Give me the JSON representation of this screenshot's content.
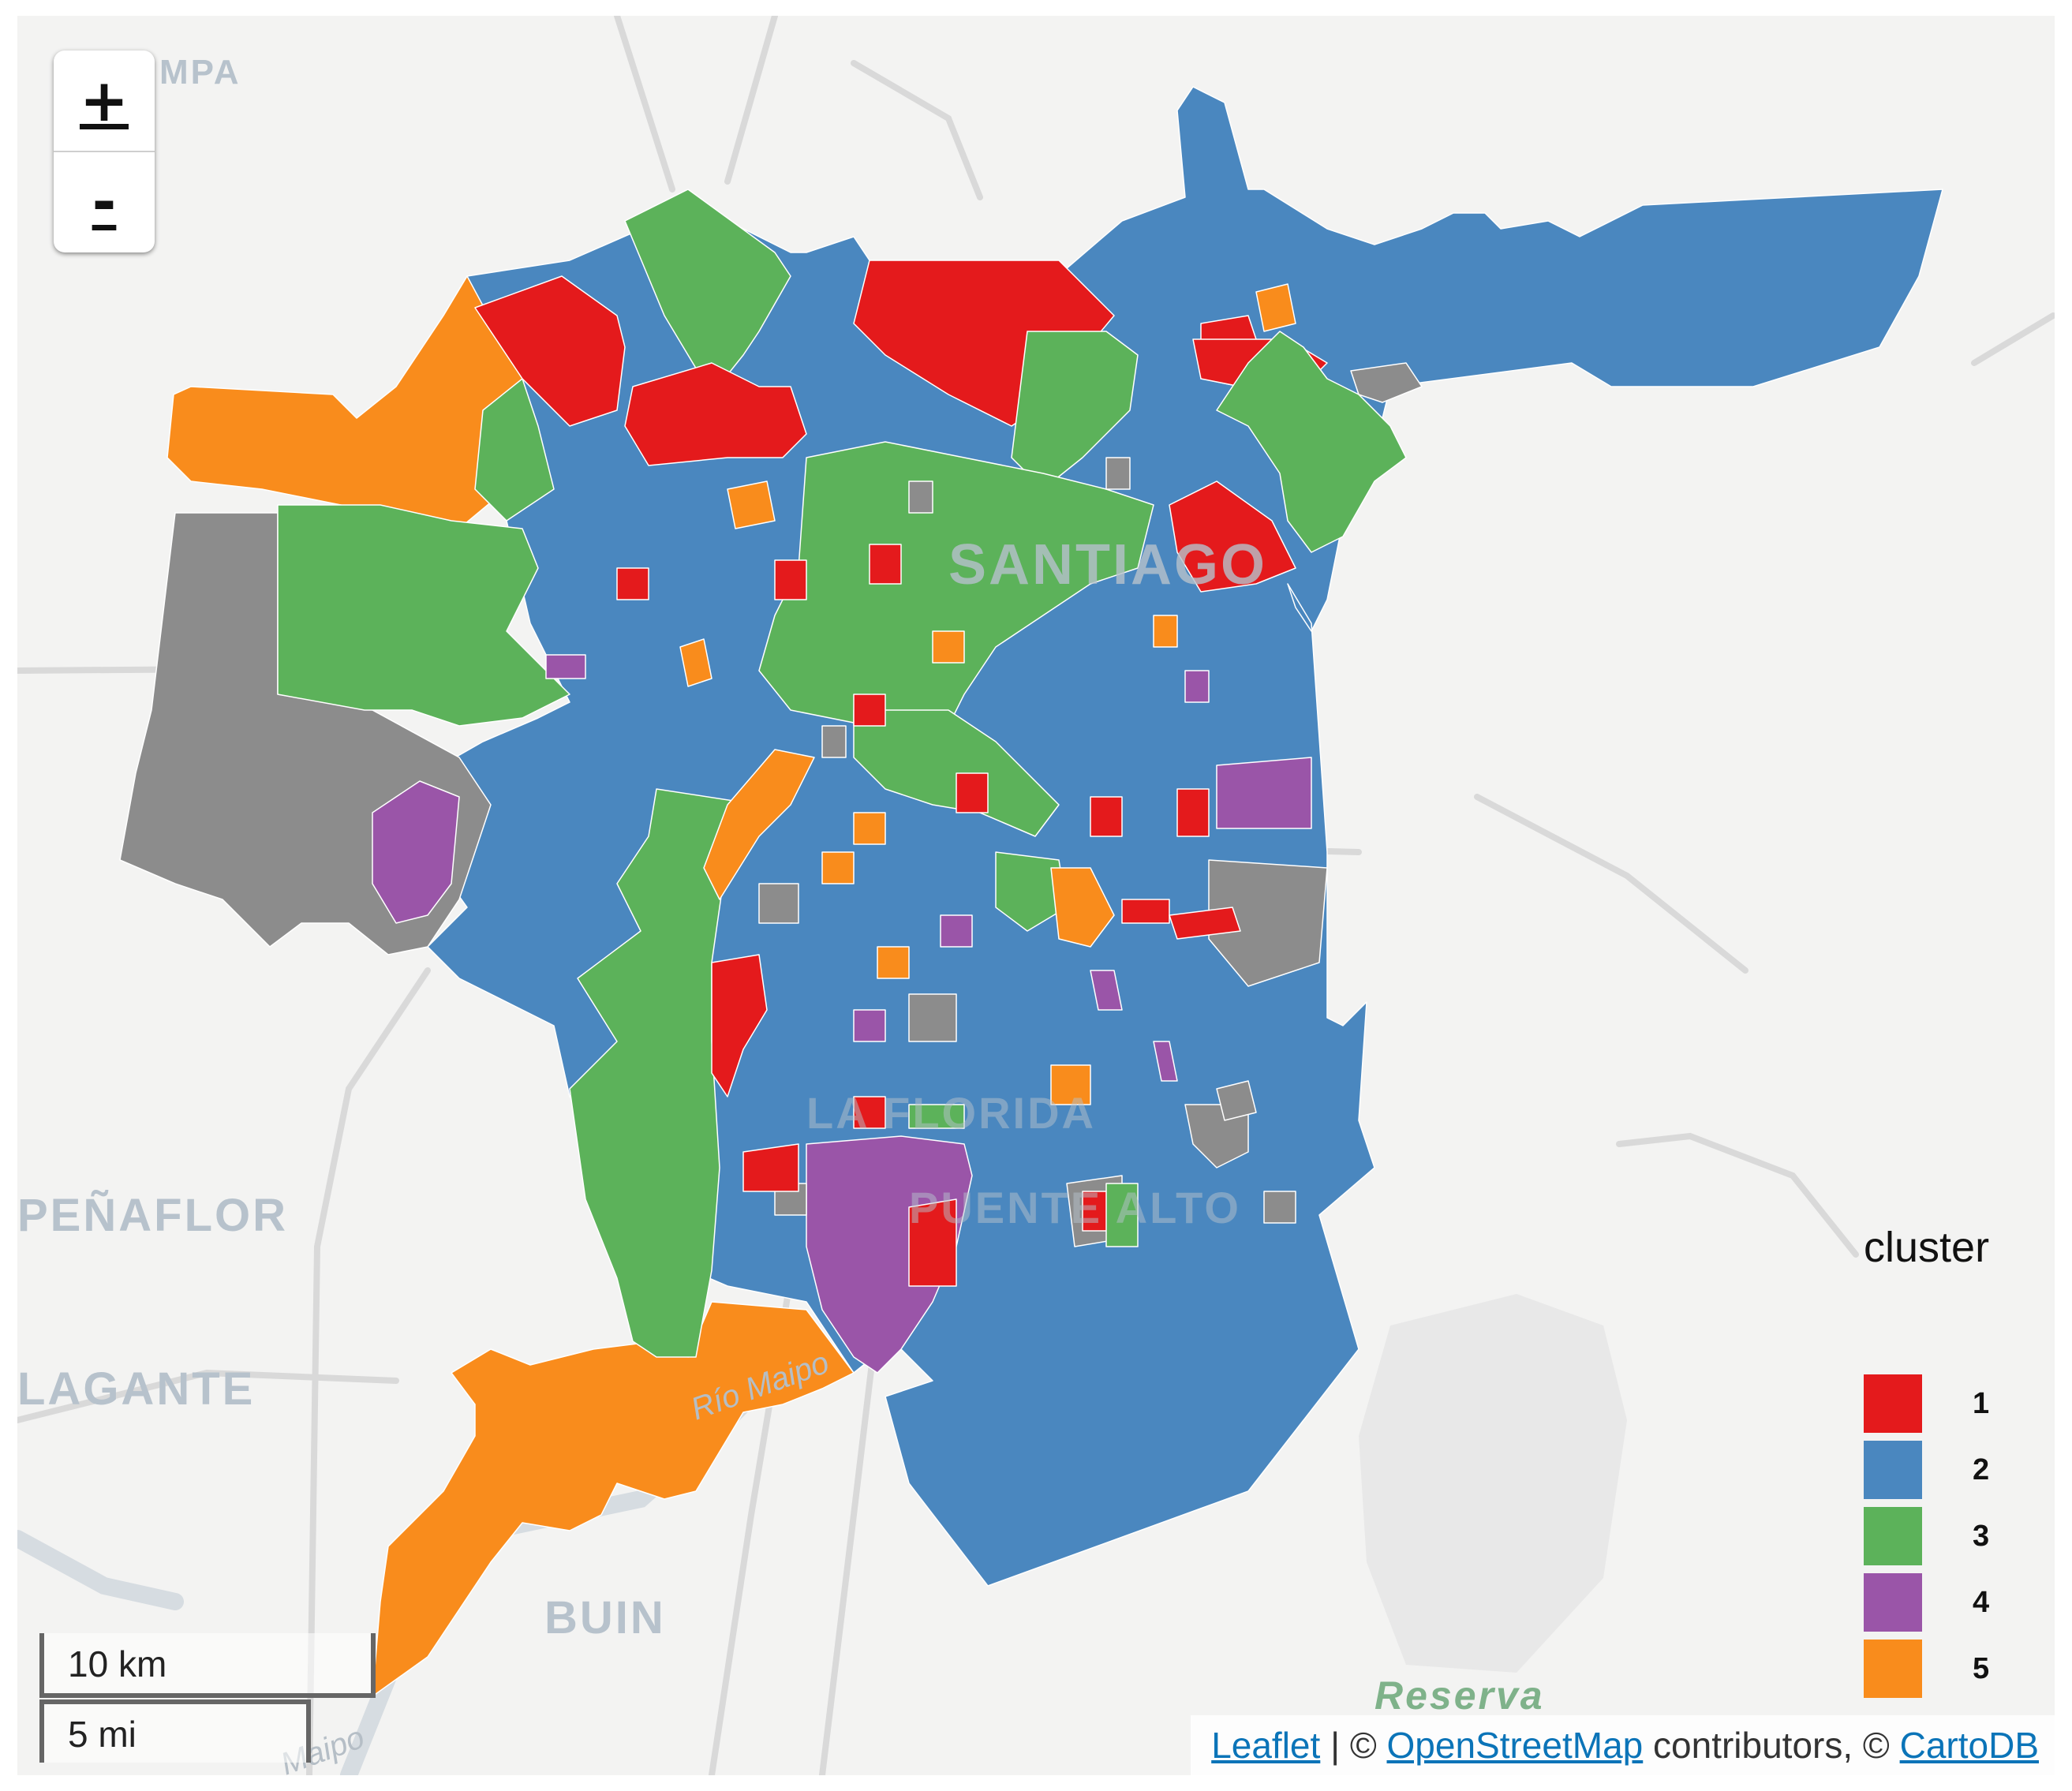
{
  "map": {
    "basemap_labels": {
      "pampa": "MPA",
      "santiago": "SANTIAGO",
      "penaflor": "PEÑAFLOR",
      "talagante": "LAGANTE",
      "buin": "BUIN",
      "reserva": "Reserva",
      "la_florida": "LA FLORIDA",
      "puente_alto": "PUENTE ALTO",
      "rio_maipo": "Río Maipo",
      "maipo": "Maipo"
    },
    "cluster_colors": {
      "1": "#e41a1c",
      "2": "#4a87bf",
      "3": "#5cb25a",
      "4": "#9a55a8",
      "5": "#f98c1c",
      "na": "#8c8c8c"
    }
  },
  "zoom_control": {
    "zoom_in_label": "+",
    "zoom_out_label": "-"
  },
  "legend": {
    "title": "cluster",
    "items": [
      {
        "label": "1",
        "color": "#e41a1c"
      },
      {
        "label": "2",
        "color": "#4a87bf"
      },
      {
        "label": "3",
        "color": "#5cb25a"
      },
      {
        "label": "4",
        "color": "#9a55a8"
      },
      {
        "label": "5",
        "color": "#f98c1c"
      }
    ]
  },
  "scale_bar": {
    "metric": "10 km",
    "imperial": "5 mi"
  },
  "attribution": {
    "leaflet": "Leaflet",
    "separator": " | © ",
    "osm": "OpenStreetMap",
    "contributors": " contributors, © ",
    "carto": "CartoDB"
  }
}
